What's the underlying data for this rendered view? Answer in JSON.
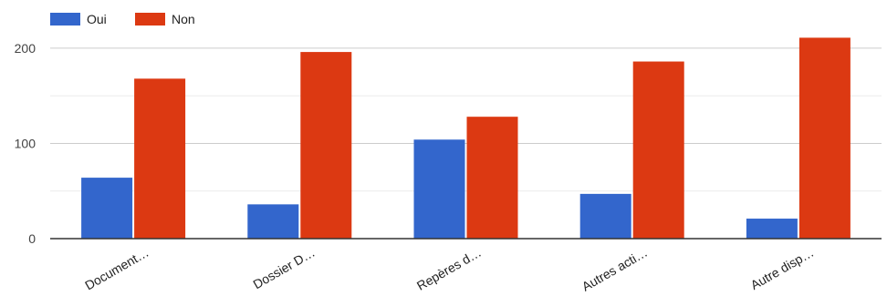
{
  "chart_data": {
    "type": "bar",
    "categories": [
      "Document…",
      "Dossier D…",
      "Repères d…",
      "Autres acti…",
      "Autre disp…"
    ],
    "series": [
      {
        "name": "Oui",
        "values": [
          64,
          36,
          104,
          47,
          21
        ],
        "color": "#3366cc"
      },
      {
        "name": "Non",
        "values": [
          168,
          196,
          128,
          186,
          211
        ],
        "color": "#dc3912"
      }
    ],
    "ylim": [
      0,
      220
    ],
    "yticks": [
      0,
      100,
      200
    ],
    "grid": true,
    "legend": "top-left",
    "colors": {
      "axis": "#333333",
      "grid_major": "#cccccc",
      "grid_minor": "#ebebeb"
    }
  }
}
